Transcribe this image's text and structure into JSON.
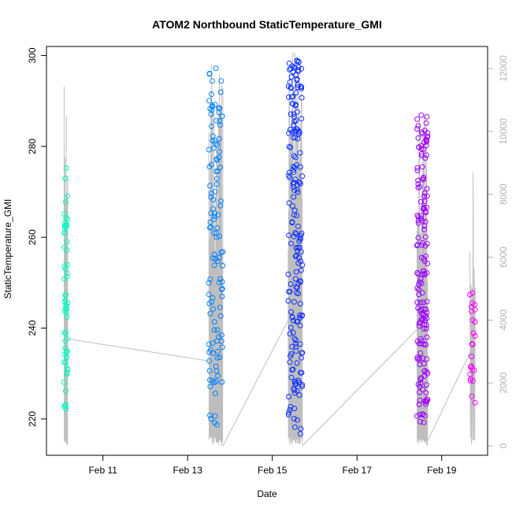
{
  "chart_data": {
    "type": "scatter",
    "title": "ATOM2 Northbound StaticTemperature_GMI",
    "xlabel": "Date",
    "ylabel": "StaticTemperature_GMI",
    "x_type": "date",
    "xlim": [
      "2017-02-09T16:00",
      "2017-02-20T02:00"
    ],
    "ylim": [
      212,
      302
    ],
    "y_ticks": [
      220,
      240,
      260,
      280,
      300
    ],
    "x_ticks": [
      {
        "date": "2017-02-11T00:00",
        "label": "Feb 11"
      },
      {
        "date": "2017-02-13T00:00",
        "label": "Feb 13"
      },
      {
        "date": "2017-02-15T00:00",
        "label": "Feb 15"
      },
      {
        "date": "2017-02-17T00:00",
        "label": "Feb 17"
      },
      {
        "date": "2017-02-19T00:00",
        "label": "Feb 19"
      }
    ],
    "secondary_axis": {
      "side": "right",
      "label": "",
      "ylim": [
        -300,
        12700
      ],
      "ticks": [
        0,
        2000,
        4000,
        6000,
        8000,
        10000,
        12000
      ],
      "line_color": "#bebebe",
      "tick_color": "#b3b3b3"
    },
    "grid": false,
    "legend": "none",
    "point_symbol": "open-circle",
    "color_scale": [
      "#00ffbf",
      "#00bfff",
      "#0040ff",
      "#4000ff",
      "#ff00ff"
    ],
    "flights": [
      {
        "start": "2017-02-10T02:00",
        "end": "2017-02-10T04:00",
        "y_min": 220.5,
        "y_max": 277.5,
        "alt_min": 0,
        "alt_max": 11800,
        "n": 60
      },
      {
        "start": "2017-02-13T12:00",
        "end": "2017-02-13T20:00",
        "y_min": 218.5,
        "y_max": 297.5,
        "alt_min": 0,
        "alt_max": 12400,
        "n": 120
      },
      {
        "start": "2017-02-15T09:00",
        "end": "2017-02-15T17:00",
        "y_min": 215.5,
        "y_max": 299.0,
        "alt_min": 0,
        "alt_max": 12600,
        "n": 190
      },
      {
        "start": "2017-02-18T10:00",
        "end": "2017-02-18T16:00",
        "y_min": 218.5,
        "y_max": 287.0,
        "alt_min": 0,
        "alt_max": 10900,
        "n": 160
      },
      {
        "start": "2017-02-19T16:00",
        "end": "2017-02-19T19:00",
        "y_min": 222.5,
        "y_max": 248.0,
        "alt_min": 0,
        "alt_max": 8700,
        "n": 24
      }
    ],
    "altitude_transits": [
      [
        [
          "2017-02-10T04:00",
          3400
        ],
        [
          "2017-02-13T12:00",
          2700
        ]
      ],
      [
        [
          "2017-02-13T20:00",
          0
        ],
        [
          "2017-02-15T09:00",
          4000
        ]
      ],
      [
        [
          "2017-02-15T17:00",
          0
        ],
        [
          "2017-02-18T10:00",
          3700
        ]
      ],
      [
        [
          "2017-02-18T16:00",
          150
        ],
        [
          "2017-02-19T18:00",
          3200
        ]
      ]
    ]
  }
}
